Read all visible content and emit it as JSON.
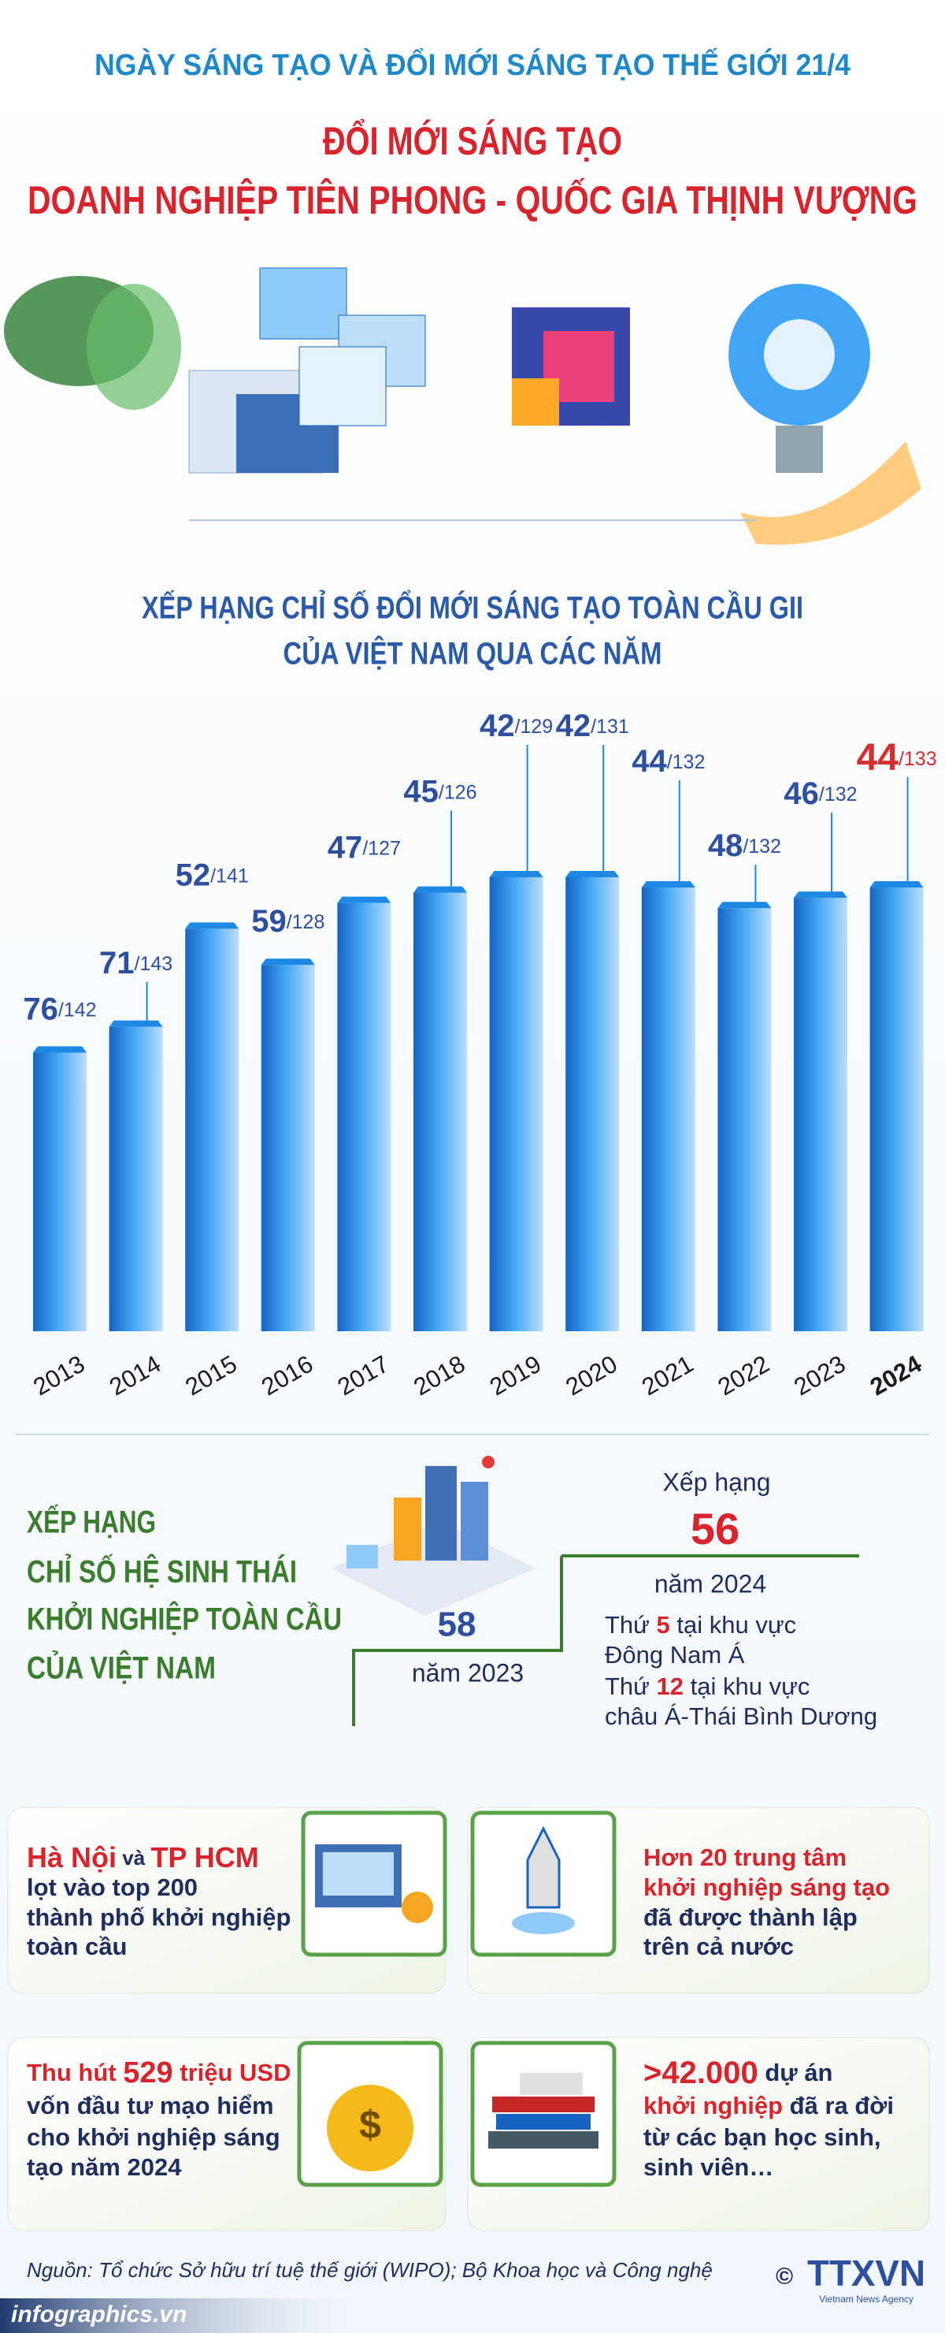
{
  "header": {
    "event": "NGÀY SÁNG TẠO VÀ ĐỔI MỚI SÁNG TẠO THẾ GIỚI 21/4",
    "title_line1": "ĐỔI MỚI SÁNG TẠO",
    "title_line2": "DOANH NGHIỆP TIÊN PHONG - QUỐC GIA THỊNH VƯỢNG"
  },
  "chart_data": {
    "type": "bar",
    "title_lines": [
      "XẾP HẠNG CHỈ SỐ ĐỔI MỚI SÁNG TẠO TOÀN CẦU GII",
      "CỦA VIỆT NAM QUA CÁC NĂM"
    ],
    "categories": [
      "2013",
      "2014",
      "2015",
      "2016",
      "2017",
      "2018",
      "2019",
      "2020",
      "2021",
      "2022",
      "2023",
      "2024"
    ],
    "values": [
      76,
      71,
      52,
      59,
      47,
      45,
      42,
      42,
      44,
      48,
      46,
      44
    ],
    "total_labels": [
      "/142",
      "/143",
      "/141",
      "/128",
      "/127",
      "/126",
      "/129",
      "/131",
      "/132",
      "/132",
      "/132",
      "/133"
    ],
    "highlight": [
      false,
      false,
      false,
      false,
      false,
      false,
      false,
      false,
      false,
      false,
      false,
      true
    ],
    "ylim": [
      130,
      0
    ],
    "color": "#1e88e5",
    "label_color": "#2d4f9e",
    "highlight_color": "#d32f2f"
  },
  "ecosystem": {
    "title_lines": [
      "XẾP HẠNG",
      "CHỈ SỐ HỆ SINH THÁI",
      "KHỞI NGHIỆP TOÀN CẦU",
      "CỦA VIỆT NAM"
    ],
    "rank_2024_caption": "Xếp hạng",
    "rank_2024": "56",
    "year_2024": "năm 2024",
    "rank_2023": "58",
    "year_2023": "năm 2023",
    "notes": [
      [
        "Thứ ",
        "5",
        " tại khu vực"
      ],
      [
        "Đông Nam Á"
      ],
      [
        "Thứ ",
        "12",
        " tại khu vực"
      ],
      [
        "châu Á-Thái Bình Dương"
      ]
    ]
  },
  "cards": [
    {
      "lines": [
        [
          "Hà Nội",
          " và ",
          "TP HCM"
        ],
        [
          "lọt vào top 200"
        ],
        [
          "thành phố khởi nghiệp"
        ],
        [
          "toàn cầu"
        ]
      ]
    },
    {
      "lines": [
        [
          "Hơn 20 trung tâm"
        ],
        [
          "khởi nghiệp sáng tạo"
        ],
        [
          "đã được thành lập"
        ],
        [
          "trên cả nước"
        ]
      ]
    },
    {
      "lines": [
        [
          "Thu hút ",
          "529",
          " triệu USD"
        ],
        [
          "vốn đầu tư mạo hiểm"
        ],
        [
          "cho khởi nghiệp sáng"
        ],
        [
          "tạo năm 2024"
        ]
      ]
    },
    {
      "lines": [
        [
          ">42.000",
          " dự án"
        ],
        [
          "khởi nghiệp",
          " đã ra đời"
        ],
        [
          "từ các bạn học sinh,"
        ],
        [
          "sinh viên…"
        ]
      ]
    }
  ],
  "footer": {
    "source": "Nguồn: Tổ chức Sở hữu trí tuệ thế giới (WIPO); Bộ Khoa học và Công nghệ",
    "site": "infographics.vn",
    "logo": "TTXVN",
    "logo_sub": "Vietnam News Agency",
    "copyright": "©"
  }
}
